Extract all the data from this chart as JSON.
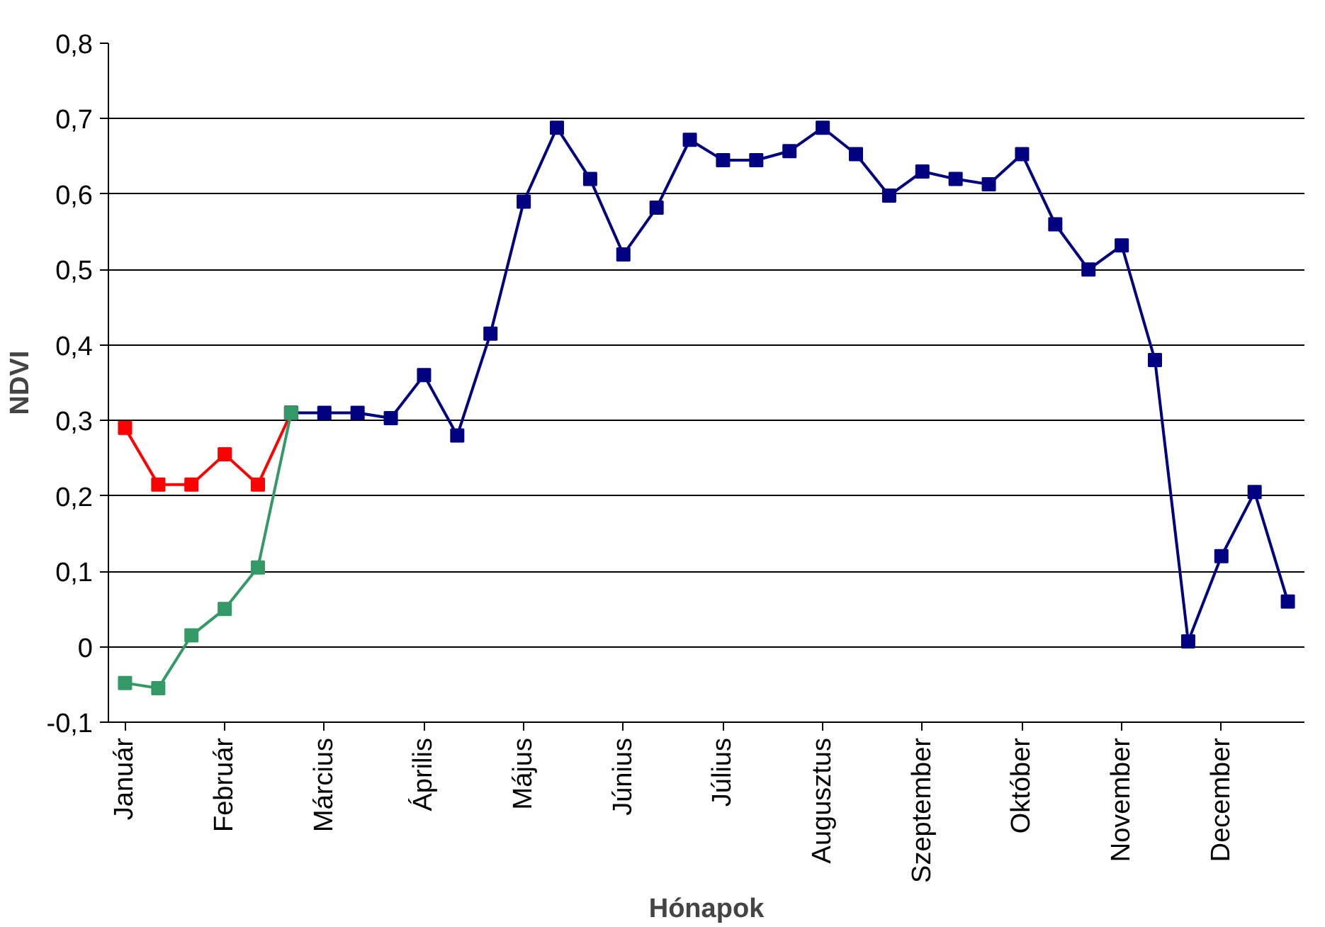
{
  "chart_data": {
    "type": "line",
    "xlabel": "Hónapok",
    "ylabel": "NDVI",
    "categories": [
      "Január",
      null,
      null,
      "Február",
      null,
      null,
      "Március",
      null,
      null,
      "Április",
      null,
      null,
      "Május",
      null,
      null,
      "Június",
      null,
      null,
      "Július",
      null,
      null,
      "Augusztus",
      null,
      null,
      "Szeptember",
      null,
      null,
      "Október",
      null,
      null,
      "November",
      null,
      null,
      "December",
      null,
      null
    ],
    "series": [
      {
        "color": "#ff0000",
        "values": [
          0.29,
          0.215,
          0.215,
          0.255,
          0.215,
          0.31,
          null,
          null,
          null,
          null,
          null,
          null,
          null,
          null,
          null,
          null,
          null,
          null,
          null,
          null,
          null,
          null,
          null,
          null,
          null,
          null,
          null,
          null,
          null,
          null,
          null,
          null,
          null,
          null,
          null,
          null
        ]
      },
      {
        "color": "#000080",
        "values": [
          null,
          null,
          null,
          null,
          null,
          0.31,
          0.31,
          0.31,
          0.303,
          0.36,
          0.28,
          0.415,
          0.59,
          0.688,
          0.62,
          0.52,
          0.582,
          0.672,
          0.645,
          0.645,
          0.657,
          0.688,
          0.653,
          0.598,
          0.63,
          0.62,
          0.613,
          0.653,
          0.56,
          0.5,
          0.532,
          0.38,
          0.007,
          0.12,
          0.205,
          0.06
        ]
      },
      {
        "color": "#339966",
        "values": [
          -0.048,
          -0.055,
          0.015,
          0.05,
          0.105,
          0.31,
          null,
          null,
          null,
          null,
          null,
          null,
          null,
          null,
          null,
          null,
          null,
          null,
          null,
          null,
          null,
          null,
          null,
          null,
          null,
          null,
          null,
          null,
          null,
          null,
          null,
          null,
          null,
          null,
          null,
          null
        ]
      }
    ],
    "ylim": [
      -0.1,
      0.8
    ],
    "yticks": [
      {
        "value": -0.1,
        "label": "-0,1"
      },
      0,
      {
        "value": 0.1,
        "label": "0,1"
      },
      {
        "value": 0.2,
        "label": "0,2"
      },
      {
        "value": 0.3,
        "label": "0,3"
      },
      {
        "value": 0.4,
        "label": "0,4"
      },
      {
        "value": 0.5,
        "label": "0,5"
      },
      {
        "value": 0.6,
        "label": "0,6"
      },
      {
        "value": 0.7,
        "label": "0,7"
      },
      {
        "value": 0.8,
        "label": "0,8"
      }
    ],
    "grid": "y",
    "marker": "square",
    "line_style": "solid"
  }
}
